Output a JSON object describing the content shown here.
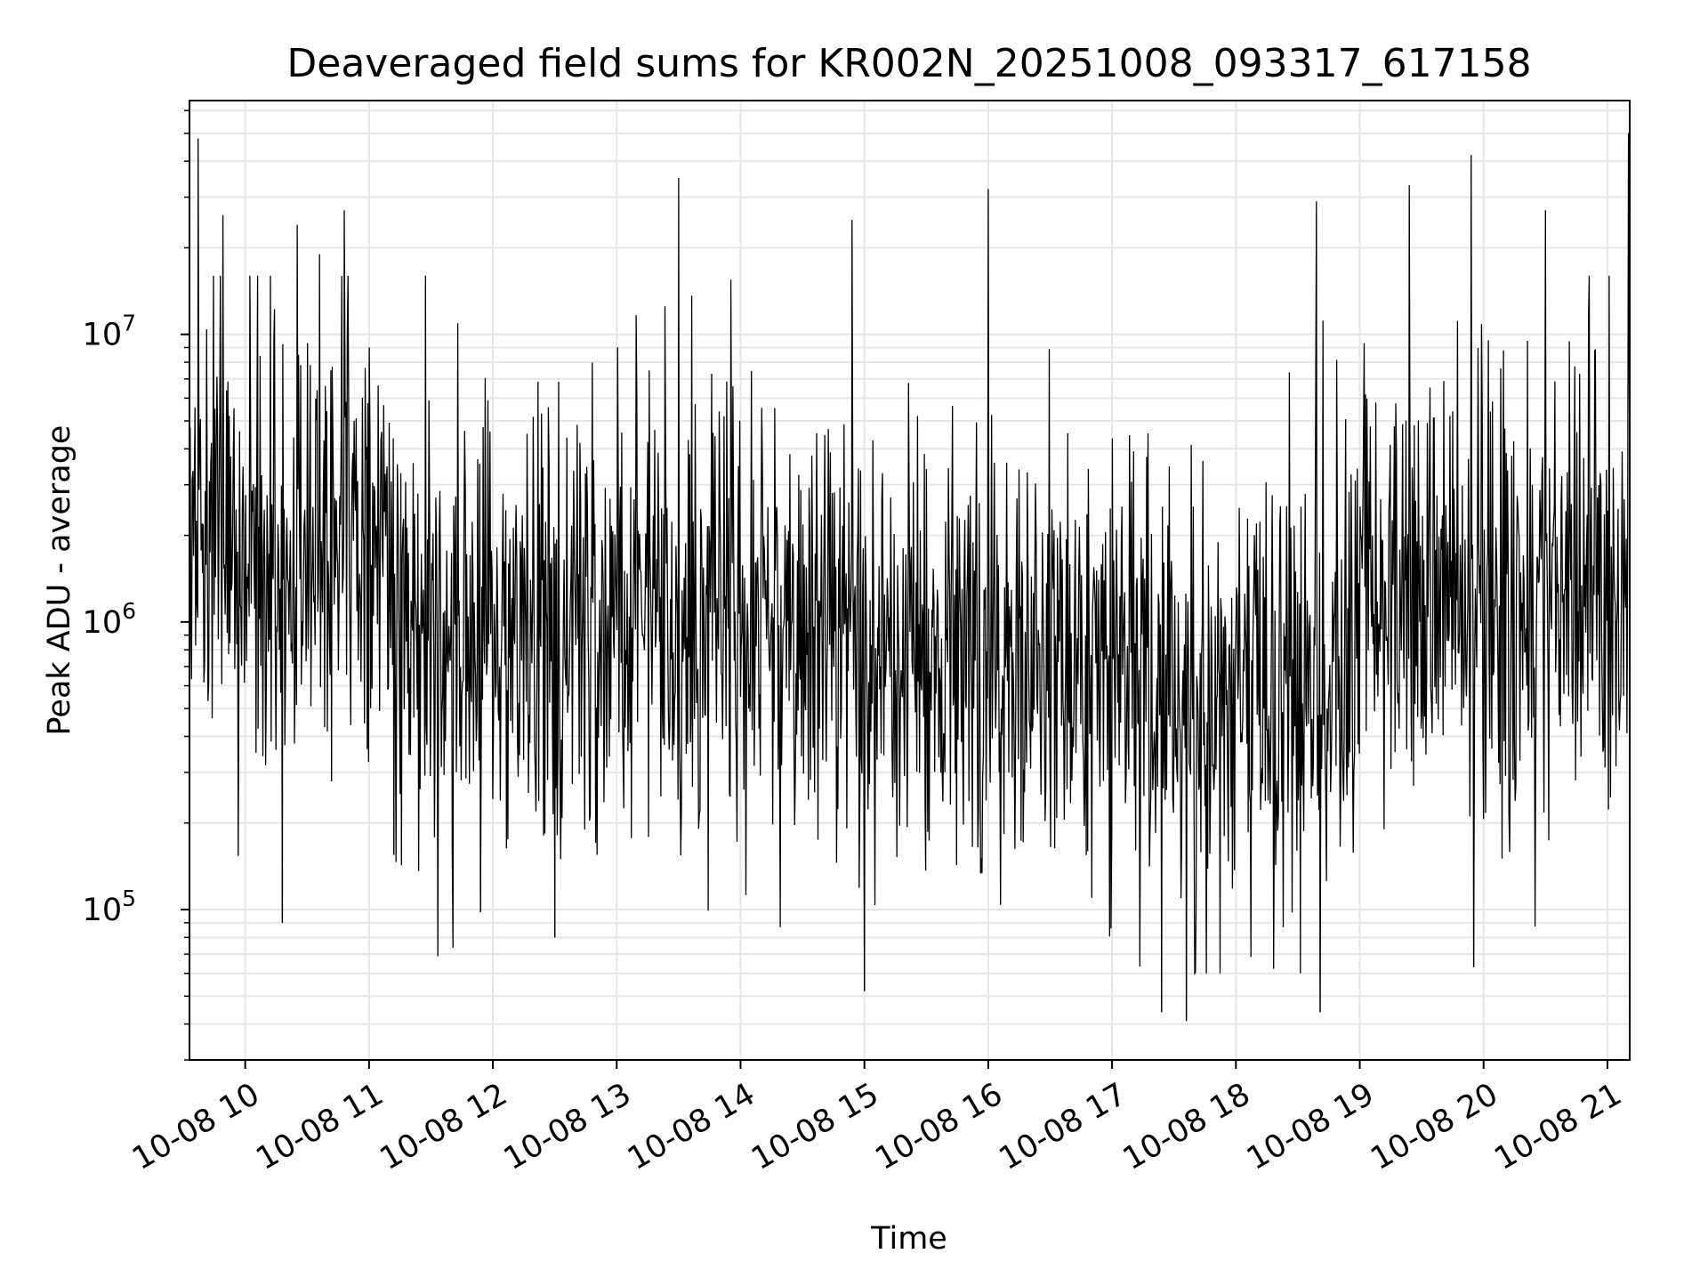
{
  "chart_data": {
    "type": "line",
    "title": "Deaveraged field sums for KR002N_20251008_093317_617158",
    "xlabel": "Time",
    "ylabel": "Peak ADU - average",
    "x_range_hours": [
      9.55,
      21.18
    ],
    "y_scale": "log",
    "ylim": [
      30000,
      65000000
    ],
    "grid": true,
    "x_tick_hours": [
      10,
      11,
      12,
      13,
      14,
      15,
      16,
      17,
      18,
      19,
      20,
      21
    ],
    "x_tick_labels": [
      "10-08 10",
      "10-08 11",
      "10-08 12",
      "10-08 13",
      "10-08 14",
      "10-08 15",
      "10-08 16",
      "10-08 17",
      "10-08 18",
      "10-08 19",
      "10-08 20",
      "10-08 21"
    ],
    "y_major_ticks": [
      {
        "value": 100000,
        "base": "10",
        "exp": "5"
      },
      {
        "value": 1000000,
        "base": "10",
        "exp": "6"
      },
      {
        "value": 10000000,
        "base": "10",
        "exp": "7"
      }
    ],
    "series": [
      {
        "name": "deaveraged field sum",
        "color": "#000000",
        "points_note": "dense noisy series, roughly 1e5 to 3e7 ADU, ~1 sample per 20 s",
        "spikes": [
          {
            "x": 9.62,
            "y": 48000000
          },
          {
            "x": 9.82,
            "y": 26000000
          },
          {
            "x": 10.1,
            "y": 16000000
          },
          {
            "x": 10.3,
            "y": 90000
          },
          {
            "x": 10.42,
            "y": 24000000
          },
          {
            "x": 10.6,
            "y": 19000000
          },
          {
            "x": 10.8,
            "y": 27000000
          },
          {
            "x": 11.2,
            "y": 155000
          },
          {
            "x": 11.9,
            "y": 98000
          },
          {
            "x": 12.5,
            "y": 80000
          },
          {
            "x": 13.5,
            "y": 35000000
          },
          {
            "x": 14.9,
            "y": 25000000
          },
          {
            "x": 15.0,
            "y": 52000
          },
          {
            "x": 16.0,
            "y": 32000000
          },
          {
            "x": 17.4,
            "y": 44000
          },
          {
            "x": 17.6,
            "y": 41000
          },
          {
            "x": 18.65,
            "y": 29000000
          },
          {
            "x": 18.68,
            "y": 44000
          },
          {
            "x": 19.4,
            "y": 33000000
          },
          {
            "x": 19.9,
            "y": 42000000
          },
          {
            "x": 19.92,
            "y": 63000
          },
          {
            "x": 20.5,
            "y": 27000000
          },
          {
            "x": 21.17,
            "y": 50000000
          }
        ]
      }
    ]
  }
}
